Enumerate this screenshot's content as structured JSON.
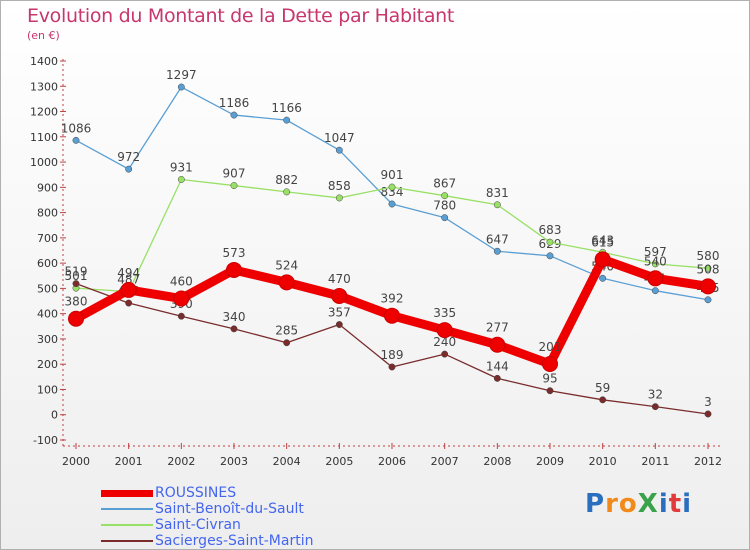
{
  "title": "Evolution du Montant de la Dette par Habitant",
  "unit": "(en €)",
  "logo": {
    "text": "ProXiti",
    "letters": [
      "P",
      "r",
      "o",
      "X",
      "i",
      "t",
      "i"
    ],
    "colors": [
      "#2a6fbf",
      "#f18a1b",
      "#f18a1b",
      "#3aa24a",
      "#2a6fbf",
      "#e23b3b",
      "#2a6fbf"
    ]
  },
  "chart_data": {
    "type": "line",
    "title": "Evolution du Montant de la Dette par Habitant",
    "ylabel": "(en €)",
    "xlabel": "",
    "x": [
      "2000",
      "2001",
      "2002",
      "2003",
      "2004",
      "2005",
      "2006",
      "2007",
      "2008",
      "2009",
      "2010",
      "2011",
      "2012"
    ],
    "ylim": [
      -100,
      1400
    ],
    "yticks": [
      -100,
      0,
      100,
      200,
      300,
      400,
      500,
      600,
      700,
      800,
      900,
      1000,
      1100,
      1200,
      1300,
      1400
    ],
    "grid": false,
    "legend_position": "bottom-left",
    "series": [
      {
        "name": "ROUSSINES",
        "color": "#ee0000",
        "thick": true,
        "values": [
          380,
          494,
          460,
          573,
          524,
          470,
          392,
          335,
          277,
          201,
          615,
          540,
          508
        ]
      },
      {
        "name": "Saint-Benoît-du-Sault",
        "color": "#5a9fd4",
        "thick": false,
        "values": [
          1086,
          972,
          1297,
          1186,
          1166,
          1047,
          834,
          780,
          647,
          629,
          540,
          491,
          455
        ]
      },
      {
        "name": "Saint-Civran",
        "color": "#99e066",
        "thick": false,
        "values": [
          501,
          487,
          931,
          907,
          882,
          858,
          901,
          867,
          831,
          683,
          643,
          597,
          580
        ]
      },
      {
        "name": "Sacierges-Saint-Martin",
        "color": "#7a2c2c",
        "thick": false,
        "values": [
          519,
          442,
          390,
          340,
          285,
          357,
          189,
          240,
          144,
          95,
          59,
          32,
          3
        ]
      }
    ]
  }
}
